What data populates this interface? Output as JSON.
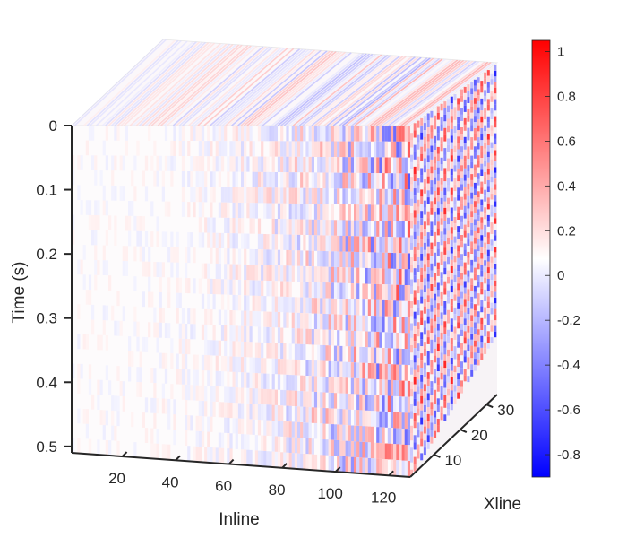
{
  "chart_data": {
    "type": "heatmap",
    "subtype": "3d-volume-slice",
    "title": "",
    "xlabel": "Inline",
    "ylabel": "Xline",
    "zlabel": "Time (s)",
    "x_ticks": [
      "20",
      "40",
      "60",
      "80",
      "100",
      "120"
    ],
    "x_tick_values": [
      20,
      40,
      60,
      80,
      100,
      120
    ],
    "xlim": [
      1,
      128
    ],
    "y_ticks": [
      "10",
      "20",
      "30"
    ],
    "y_tick_values": [
      10,
      20,
      30
    ],
    "ylim": [
      1,
      34
    ],
    "z_ticks": [
      "0",
      "0.1",
      "0.2",
      "0.3",
      "0.4",
      "0.5"
    ],
    "z_tick_values": [
      0,
      0.1,
      0.2,
      0.3,
      0.4,
      0.5
    ],
    "zlim": [
      0,
      0.51
    ],
    "z_direction": "reversed",
    "colorbar": {
      "ticks": [
        "1",
        "0.8",
        "0.6",
        "0.4",
        "0.2",
        "0",
        "-0.2",
        "-0.4",
        "-0.6",
        "-0.8"
      ],
      "tick_values": [
        1,
        0.8,
        0.6,
        0.4,
        0.2,
        0,
        -0.2,
        -0.4,
        -0.6,
        -0.8
      ],
      "limits": [
        -0.9,
        1.05
      ],
      "colormap": "blue-white-red",
      "colors": {
        "low": "#0000ff",
        "mid": "#ffffff",
        "high": "#ff0000"
      }
    },
    "grid": false
  }
}
